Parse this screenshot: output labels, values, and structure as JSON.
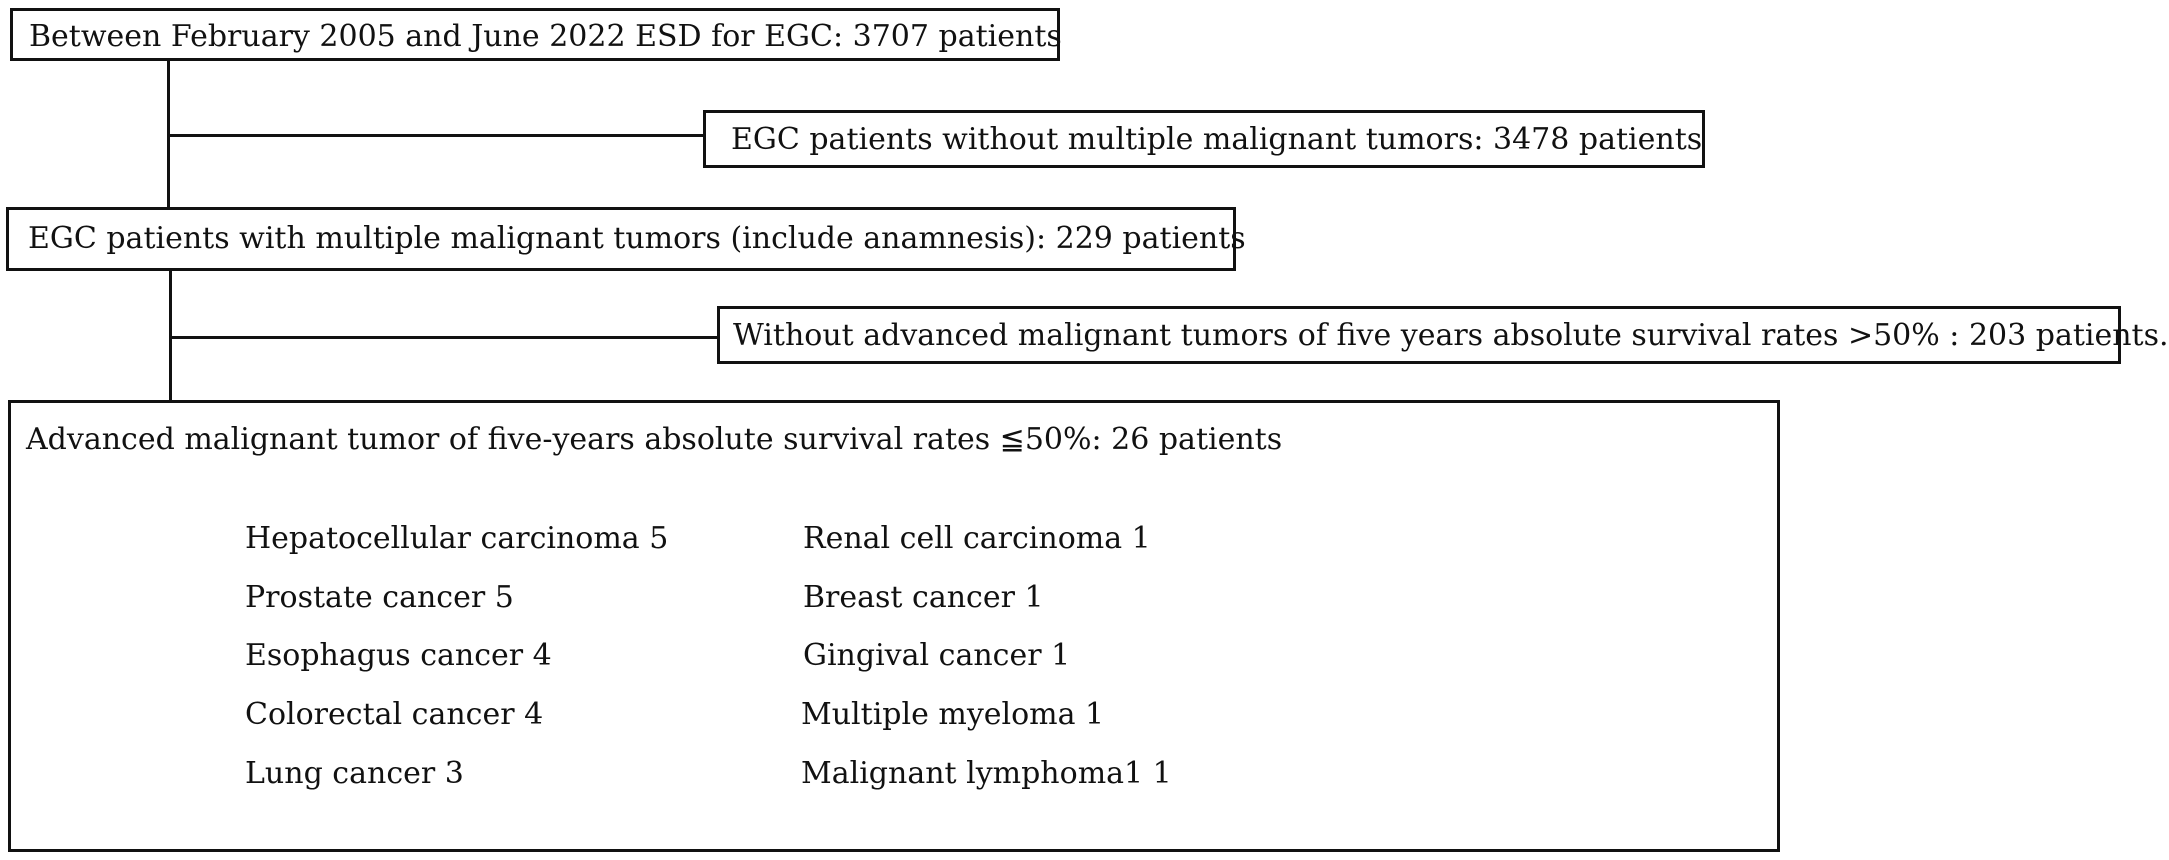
{
  "flow": {
    "start": "Between February 2005 and June 2022 ESD for EGC: 3707 patients",
    "excluded_1": "EGC patients without multiple malignant tumors: 3478 patients",
    "step_2": "EGC patients with multiple malignant tumors (include anamnesis): 229 patients",
    "excluded_2": "Without advanced malignant tumors of five years absolute survival rates >50% : 203 patients.",
    "final": "Advanced malignant tumor of five-years absolute survival rates ≦50%: 26 patients"
  },
  "tumor_list": {
    "left": [
      "Hepatocellular carcinoma 5",
      "Prostate cancer 5",
      "Esophagus cancer 4",
      "Colorectal cancer 4",
      "Lung cancer 3"
    ],
    "right": [
      "Renal cell carcinoma 1",
      "Breast cancer 1",
      "Gingival cancer 1",
      "Multiple myeloma 1",
      "Malignant lymphoma1 1"
    ]
  }
}
